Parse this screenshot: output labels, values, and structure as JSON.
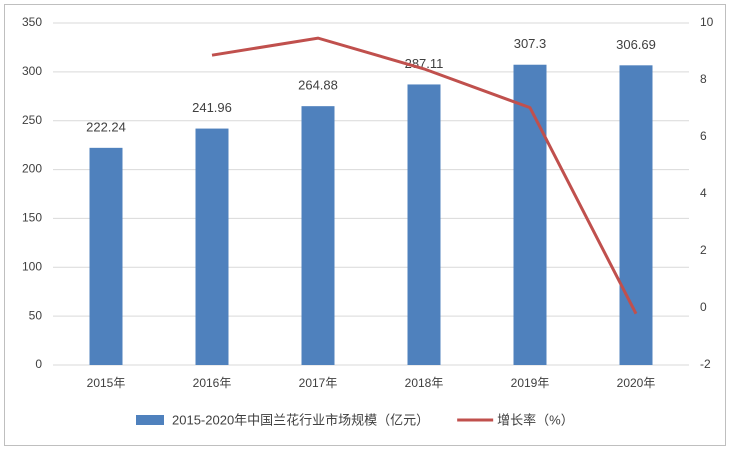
{
  "chart_data": {
    "type": "bar",
    "categories": [
      "2015年",
      "2016年",
      "2017年",
      "2018年",
      "2019年",
      "2020年"
    ],
    "series": [
      {
        "name": "2015-2020年中国兰花行业市场规模（亿元）",
        "color": "#4f81bd",
        "type": "bar",
        "values": [
          222.24,
          241.96,
          264.88,
          287.11,
          307.3,
          306.69
        ]
      },
      {
        "name": "增长率（%）",
        "color": "#c0504d",
        "type": "line",
        "axis": "y2",
        "values": [
          null,
          8.87,
          9.47,
          8.39,
          7.03,
          -0.2
        ]
      }
    ],
    "ylim": [
      0,
      350
    ],
    "yticks": [
      0,
      50,
      100,
      150,
      200,
      250,
      300,
      350
    ],
    "y2lim": [
      -2,
      10
    ],
    "y2ticks": [
      -2,
      0,
      2,
      4,
      6,
      8,
      10
    ],
    "grid": true,
    "data_labels": true,
    "legend": "bottom"
  }
}
